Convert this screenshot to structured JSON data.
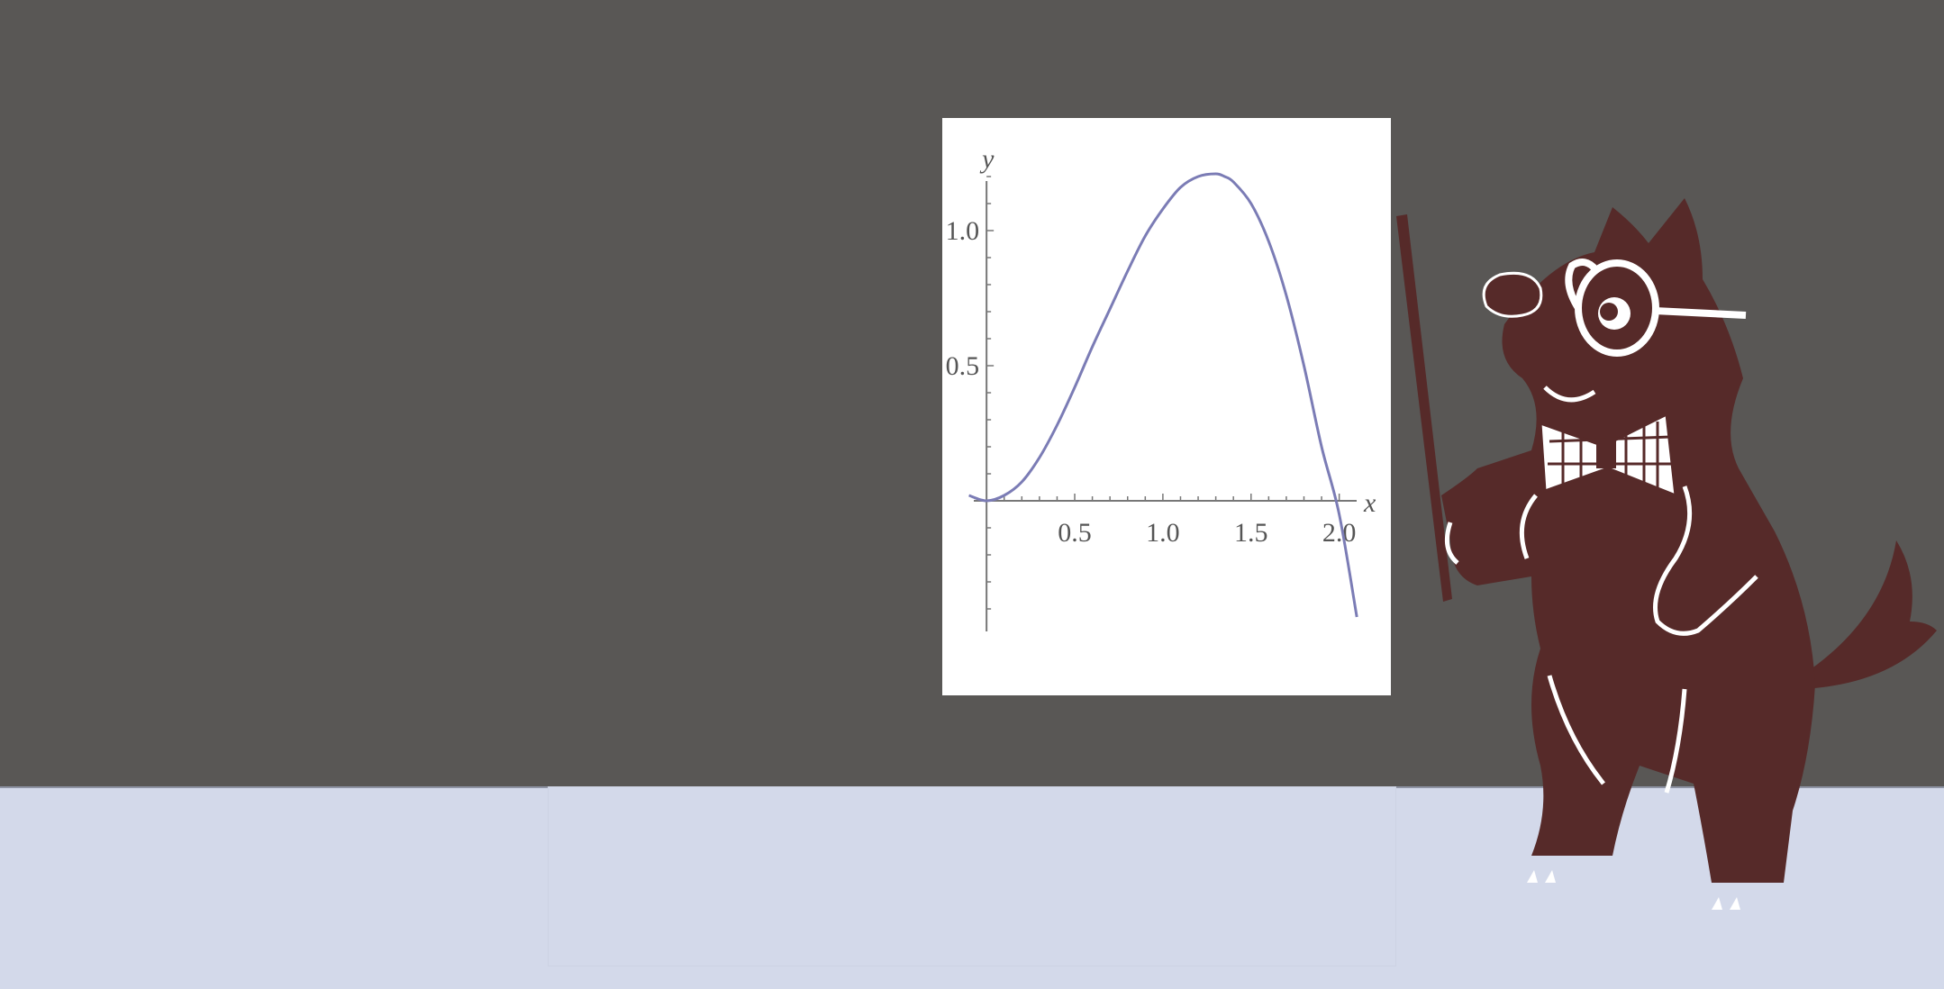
{
  "scene": {
    "board_color": "#595755",
    "floor_color": "#d3d9ea",
    "mascot_color": "#562a29"
  },
  "chart_data": {
    "type": "line",
    "x_label": "x",
    "y_label": "y",
    "x_ticks": [
      "0.5",
      "1.0",
      "1.5",
      "2.0"
    ],
    "y_ticks": [
      "0.5",
      "1.0"
    ],
    "x_range": [
      -0.2,
      2.15
    ],
    "y_range": [
      -0.45,
      1.25
    ],
    "series": [
      {
        "color": "#7b7cb5",
        "x": [
          -0.1,
          0.0,
          0.1,
          0.2,
          0.3,
          0.4,
          0.5,
          0.6,
          0.7,
          0.8,
          0.9,
          1.0,
          1.1,
          1.2,
          1.3,
          1.35,
          1.4,
          1.5,
          1.6,
          1.7,
          1.8,
          1.9,
          2.0,
          2.1
        ],
        "y": [
          0.02,
          0.0,
          0.02,
          0.07,
          0.16,
          0.28,
          0.42,
          0.57,
          0.71,
          0.85,
          0.98,
          1.08,
          1.16,
          1.2,
          1.21,
          1.2,
          1.18,
          1.1,
          0.96,
          0.76,
          0.5,
          0.2,
          -0.05,
          -0.43
        ]
      }
    ]
  }
}
